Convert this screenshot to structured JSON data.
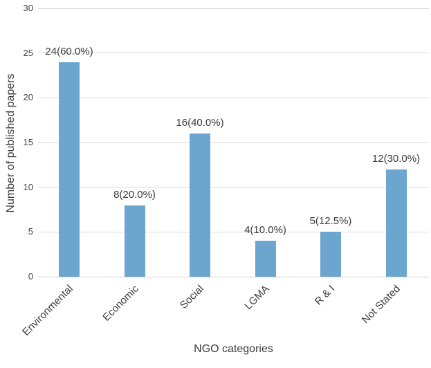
{
  "chart_data": {
    "type": "bar",
    "title": "",
    "categories": [
      "Environmental",
      "Economic",
      "Social",
      "LGMA",
      "R & I",
      "Not Stated"
    ],
    "values": [
      24,
      8,
      16,
      4,
      5,
      12
    ],
    "value_labels": [
      "24(60.0%)",
      "8(20.0%)",
      "16(40.0%)",
      "4(10.0%)",
      "5(12.5%)",
      "12(30.0%)"
    ],
    "xlabel": "NGO categories",
    "ylabel": "Number of published papers",
    "ylim": [
      0,
      30
    ],
    "yticks": [
      0,
      5,
      10,
      15,
      20,
      25,
      30
    ],
    "ytick_labels": [
      "0",
      "5",
      "10",
      "15",
      "20",
      "25",
      "30"
    ],
    "grid": true,
    "legend_position": "none",
    "colors": {
      "bar_fill": "#6ca5ce",
      "gridline": "#dadada",
      "baseline": "#d0d0d0",
      "text": "#3b3b3b",
      "background": "#ffffff"
    }
  }
}
